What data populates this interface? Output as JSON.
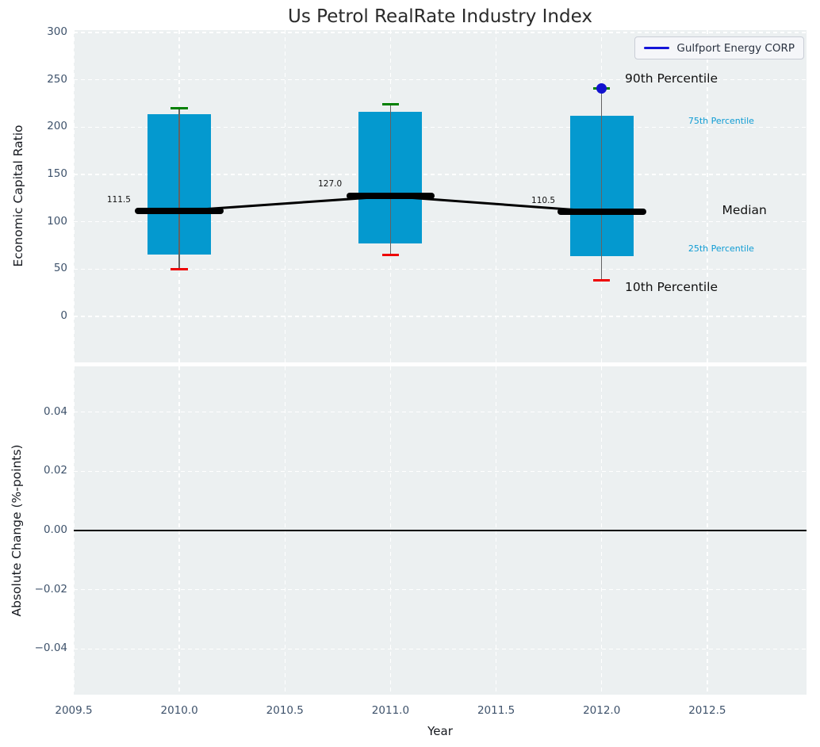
{
  "title": "Us Petrol RealRate Industry Index",
  "legend": {
    "label": "Gulfport Energy CORP",
    "position": "upper right",
    "line_color": "#1414d8"
  },
  "colors": {
    "box_fill": "#0499cf",
    "whisker": "#636363",
    "cap_high": "#008000",
    "cap_low": "#ee0000",
    "median": "#000000",
    "company_dot": "#1212cf",
    "percentile_text": "#0f9cd4",
    "axes_background": "#ecf0f1",
    "grid": "#ffffff",
    "tick_text": "#3e526b",
    "zero_line": "#000000"
  },
  "chart_data": [
    {
      "type": "boxplot",
      "title": "Us Petrol RealRate Industry Index",
      "ylabel": "Economic Capital Ratio",
      "xlim": [
        2009.5,
        2012.97
      ],
      "ylim": [
        -48.6,
        302.5
      ],
      "grid": true,
      "legend_position": "upper right",
      "yticks": [
        {
          "value": 0,
          "label": "0"
        },
        {
          "value": 50,
          "label": "50"
        },
        {
          "value": 100,
          "label": "100"
        },
        {
          "value": 150,
          "label": "150"
        },
        {
          "value": 200,
          "label": "200"
        },
        {
          "value": 250,
          "label": "250"
        },
        {
          "value": 300,
          "label": "300"
        }
      ],
      "xticks": [
        {
          "value": 2009.5,
          "label": "2009.5"
        },
        {
          "value": 2010.0,
          "label": "2010.0"
        },
        {
          "value": 2010.5,
          "label": "2010.5"
        },
        {
          "value": 2011.0,
          "label": "2011.0"
        },
        {
          "value": 2011.5,
          "label": "2011.5"
        },
        {
          "value": 2012.0,
          "label": "2012.0"
        },
        {
          "value": 2012.5,
          "label": "2012.5"
        }
      ],
      "boxes": [
        {
          "x": 2010,
          "whisker_low": 50,
          "q1": 65,
          "median": 111.5,
          "q3": 214,
          "whisker_high": 220,
          "median_label": {
            "text": "111.5",
            "x": 2009.77,
            "y": 123
          }
        },
        {
          "x": 2011,
          "whisker_low": 65,
          "q1": 77,
          "median": 127.0,
          "q3": 216,
          "whisker_high": 224,
          "median_label": {
            "text": "127.0",
            "x": 2010.77,
            "y": 140
          }
        },
        {
          "x": 2012,
          "whisker_low": 38,
          "q1": 64,
          "median": 110.5,
          "q3": 212,
          "whisker_high": 241,
          "median_label": {
            "text": "110.5",
            "x": 2011.78,
            "y": 122
          }
        }
      ],
      "median_trend": [
        [
          2010,
          111.5
        ],
        [
          2011,
          127.0
        ],
        [
          2012,
          110.5
        ]
      ],
      "company_series": {
        "name": "Gulfport Energy CORP",
        "points": [
          [
            2012,
            241
          ]
        ]
      },
      "annotations": [
        {
          "text": "90th Percentile",
          "x": 2012.11,
          "y": 250.5,
          "size": "large",
          "color": "#111111"
        },
        {
          "text": "75th Percentile",
          "x": 2012.41,
          "y": 206.0,
          "size": "small",
          "color": "#0f9cd4"
        },
        {
          "text": "Median",
          "x": 2012.57,
          "y": 111.5,
          "size": "large",
          "color": "#111111"
        },
        {
          "text": "25th Percentile",
          "x": 2012.41,
          "y": 71.0,
          "size": "small",
          "color": "#0f9cd4"
        },
        {
          "text": "10th Percentile",
          "x": 2012.11,
          "y": 30.0,
          "size": "large",
          "color": "#111111"
        }
      ]
    },
    {
      "type": "line",
      "ylabel": "Absolute Change (%-points)",
      "xlabel": "Year",
      "xlim": [
        2009.5,
        2012.97
      ],
      "ylim": [
        -0.0554,
        0.0554
      ],
      "grid": true,
      "yticks": [
        {
          "value": 0.04,
          "label": "0.04"
        },
        {
          "value": 0.02,
          "label": "0.02"
        },
        {
          "value": 0.0,
          "label": "0.00"
        },
        {
          "value": -0.02,
          "label": "−0.02"
        },
        {
          "value": -0.04,
          "label": "−0.04"
        }
      ],
      "xticks": [
        {
          "value": 2009.5,
          "label": "2009.5"
        },
        {
          "value": 2010.0,
          "label": "2010.0"
        },
        {
          "value": 2010.5,
          "label": "2010.5"
        },
        {
          "value": 2011.0,
          "label": "2011.0"
        },
        {
          "value": 2011.5,
          "label": "2011.5"
        },
        {
          "value": 2012.0,
          "label": "2012.0"
        },
        {
          "value": 2012.5,
          "label": "2012.5"
        }
      ],
      "zero_line": {
        "y": 0.0
      },
      "series": []
    }
  ]
}
